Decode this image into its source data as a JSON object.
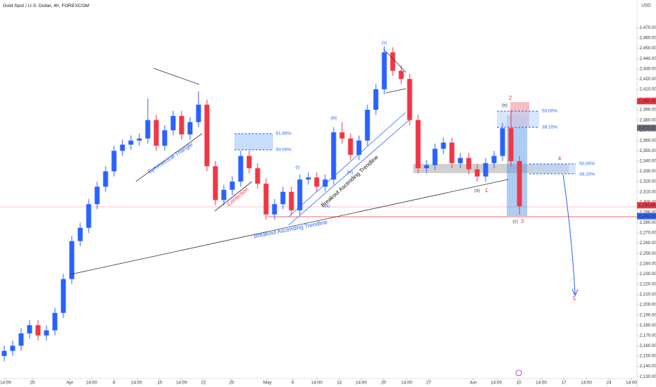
{
  "chart_data": {
    "type": "candlestick",
    "title": "Gold Spot / U.S. Dollar, 4h, FOREXCOM",
    "currency": "USD",
    "grid": false,
    "up_color": "#2962ff",
    "down_color": "#f23645",
    "xlim": [
      0,
      226.25
    ],
    "ylim": [
      2128,
      2497
    ],
    "x": [
      1.5,
      4.5,
      7.5,
      10.5,
      13.5,
      16.5,
      19.5,
      22.5,
      25.5,
      28.5,
      31.5,
      34.5,
      37.5,
      40.5,
      43.5,
      46.5,
      49.5,
      52.5,
      55.5,
      58.5,
      61.5,
      64.5,
      67.5,
      70.5,
      73.5,
      76.5,
      79.5,
      82.5,
      85.5,
      88.5,
      91.5,
      94.5,
      97.5,
      100.5,
      103.5,
      106.5,
      109.5,
      112.5,
      115.5,
      118.5,
      121.5,
      124.5,
      127.5,
      130.5,
      133.5,
      136.5,
      139.5,
      142.5,
      145.5,
      148.5,
      151.5,
      154.5,
      157.5,
      160.5,
      163.5,
      166.5,
      169.5,
      172.5,
      175.5,
      178.5,
      181.5,
      184.5
    ],
    "series": [
      {
        "open": [
          2150,
          2155,
          2160,
          2172,
          2180,
          2170,
          2175,
          2192,
          2225,
          2262,
          2275,
          2298,
          2315,
          2330,
          2350,
          2356,
          2360,
          2362,
          2380,
          2355,
          2370,
          2384,
          2366,
          2378,
          2395,
          2335,
          2302,
          2312,
          2320,
          2345,
          2333,
          2318,
          2288,
          2298,
          2310,
          2292,
          2322,
          2324,
          2315,
          2322,
          2368,
          2362,
          2346,
          2360,
          2390,
          2410,
          2446,
          2428,
          2420,
          2380,
          2333,
          2336,
          2352,
          2358,
          2338,
          2343,
          2332,
          2325,
          2338,
          2345,
          2372,
          2340
        ],
        "high": [
          2160,
          2165,
          2177,
          2185,
          2185,
          2180,
          2197,
          2230,
          2267,
          2280,
          2303,
          2320,
          2335,
          2355,
          2361,
          2365,
          2367,
          2401,
          2385,
          2375,
          2389,
          2389,
          2383,
          2408,
          2400,
          2340,
          2317,
          2325,
          2350,
          2350,
          2338,
          2323,
          2303,
          2315,
          2315,
          2327,
          2329,
          2329,
          2327,
          2373,
          2378,
          2367,
          2365,
          2395,
          2415,
          2452,
          2451,
          2433,
          2425,
          2385,
          2341,
          2357,
          2363,
          2363,
          2348,
          2348,
          2337,
          2343,
          2350,
          2377,
          2390,
          2345
        ],
        "low": [
          2145,
          2150,
          2155,
          2167,
          2165,
          2165,
          2170,
          2187,
          2220,
          2257,
          2270,
          2293,
          2310,
          2325,
          2345,
          2351,
          2355,
          2357,
          2350,
          2350,
          2365,
          2361,
          2361,
          2373,
          2330,
          2297,
          2297,
          2307,
          2315,
          2328,
          2313,
          2283,
          2283,
          2293,
          2287,
          2287,
          2317,
          2310,
          2310,
          2317,
          2357,
          2341,
          2341,
          2355,
          2385,
          2405,
          2423,
          2415,
          2375,
          2328,
          2328,
          2331,
          2347,
          2333,
          2333,
          2327,
          2320,
          2320,
          2333,
          2340,
          2335,
          2288
        ],
        "close": [
          2155,
          2160,
          2172,
          2180,
          2170,
          2175,
          2192,
          2225,
          2262,
          2275,
          2298,
          2315,
          2330,
          2350,
          2356,
          2360,
          2362,
          2380,
          2355,
          2370,
          2384,
          2366,
          2378,
          2395,
          2335,
          2302,
          2312,
          2320,
          2345,
          2333,
          2318,
          2288,
          2298,
          2310,
          2292,
          2322,
          2324,
          2315,
          2322,
          2368,
          2362,
          2346,
          2360,
          2390,
          2410,
          2446,
          2428,
          2420,
          2380,
          2333,
          2336,
          2352,
          2358,
          2338,
          2343,
          2332,
          2325,
          2338,
          2345,
          2372,
          2340,
          2296
        ]
      }
    ],
    "xticks": [
      {
        "value": 2,
        "label": "14:00"
      },
      {
        "value": 11.5,
        "label": "25"
      },
      {
        "value": 24.75,
        "label": "Apr"
      },
      {
        "value": 32.5,
        "label": "14:00"
      },
      {
        "value": 40.5,
        "label": "8"
      },
      {
        "value": 48.5,
        "label": "14:00"
      },
      {
        "value": 56.75,
        "label": "15"
      },
      {
        "value": 64.5,
        "label": "14:00"
      },
      {
        "value": 72.25,
        "label": "22"
      },
      {
        "value": 82.25,
        "label": "25"
      },
      {
        "value": 95,
        "label": "May"
      },
      {
        "value": 104,
        "label": "6"
      },
      {
        "value": 112.5,
        "label": "14:00"
      },
      {
        "value": 120.5,
        "label": "13"
      },
      {
        "value": 128.25,
        "label": "14:00"
      },
      {
        "value": 136.25,
        "label": "20"
      },
      {
        "value": 144.5,
        "label": "14:00"
      },
      {
        "value": 152.25,
        "label": "27"
      },
      {
        "value": 168,
        "label": "Jun"
      },
      {
        "value": 176.25,
        "label": "14:00"
      },
      {
        "value": 184.25,
        "label": "10"
      },
      {
        "value": 192.25,
        "label": "14:00"
      },
      {
        "value": 200.25,
        "label": "17"
      },
      {
        "value": 208.25,
        "label": "14:00"
      },
      {
        "value": 216.25,
        "label": "24"
      },
      {
        "value": 224.25,
        "label": "14:00"
      }
    ],
    "yticks": [
      {
        "value": 2130,
        "label": "2,130.00"
      },
      {
        "value": 2140,
        "label": "2,140.00"
      },
      {
        "value": 2150,
        "label": "2,150.00"
      },
      {
        "value": 2160,
        "label": "2,160.00"
      },
      {
        "value": 2170,
        "label": "2,170.00"
      },
      {
        "value": 2180,
        "label": "2,180.00"
      },
      {
        "value": 2190,
        "label": "2,190.00"
      },
      {
        "value": 2200,
        "label": "2,200.00"
      },
      {
        "value": 2210,
        "label": "2,210.00"
      },
      {
        "value": 2220,
        "label": "2,220.00"
      },
      {
        "value": 2230,
        "label": "2,230.00"
      },
      {
        "value": 2240,
        "label": "2,240.00"
      },
      {
        "value": 2250,
        "label": "2,250.00"
      },
      {
        "value": 2260,
        "label": "2,260.00"
      },
      {
        "value": 2270,
        "label": "2,270.00"
      },
      {
        "value": 2280,
        "label": "2,280.00"
      },
      {
        "value": 2290,
        "label": "2,290.00"
      },
      {
        "value": 2300,
        "label": "2,300.00"
      },
      {
        "value": 2310,
        "label": "2,310.00"
      },
      {
        "value": 2320,
        "label": "2,320.00"
      },
      {
        "value": 2330,
        "label": "2,330.00"
      },
      {
        "value": 2340,
        "label": "2,340.00"
      },
      {
        "value": 2350,
        "label": "2,350.00"
      },
      {
        "value": 2360,
        "label": "2,360.00"
      },
      {
        "value": 2370,
        "label": "2,370.00"
      },
      {
        "value": 2380,
        "label": "2,380.00"
      },
      {
        "value": 2390,
        "label": "2,390.00"
      },
      {
        "value": 2400,
        "label": "2,400.00"
      },
      {
        "value": 2410,
        "label": "2,410.00"
      },
      {
        "value": 2420,
        "label": "2,420.00"
      },
      {
        "value": 2430,
        "label": "2,430.00"
      },
      {
        "value": 2440,
        "label": "2,440.00"
      },
      {
        "value": 2450,
        "label": "2,450.00"
      },
      {
        "value": 2460,
        "label": "2,460.00"
      },
      {
        "value": 2470,
        "label": "2,470.00"
      }
    ],
    "price_tags": [
      {
        "value": 2398.39,
        "label": "2,398.39",
        "color": "#f23645"
      },
      {
        "value": 2372.32,
        "label": "2,372.32",
        "color": "#6a6d78"
      },
      {
        "value": 2296.89,
        "label": "2,296.89",
        "color": "#f23645"
      },
      {
        "value": 2286.32,
        "label": "2,286.32",
        "color": "#2962ff"
      }
    ],
    "annotations": [
      "Symmetrical Triangle",
      "Correction",
      "61.80%",
      "50.00%",
      "Breakout Ascending Trendline",
      "Breakout Ascending Trendline",
      "(i)",
      "(ii)",
      "(iii)",
      "(iv)",
      "(v)",
      "(a)",
      "1",
      "(b)",
      "2",
      "(c)",
      "3",
      "4",
      "5",
      "50.00%",
      "38.20%",
      "50.00%",
      "38.20%"
    ]
  }
}
